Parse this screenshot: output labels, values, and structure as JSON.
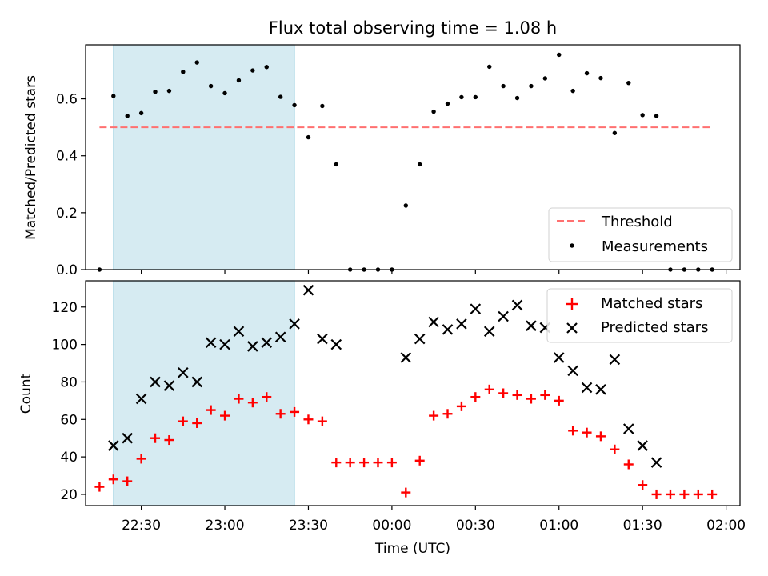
{
  "chart_data": [
    {
      "type": "scatter",
      "title": "Flux total observing time = 1.08 h",
      "ylabel": "Matched/Predicted stars",
      "xlim": [
        "22:10",
        "02:05"
      ],
      "ylim": [
        0,
        0.79
      ],
      "yticks": [
        "0.0",
        "0.2",
        "0.4",
        "0.6"
      ],
      "highlight_span": [
        "22:20",
        "23:25"
      ],
      "threshold": 0.5,
      "threshold_x": [
        "22:15",
        "01:55"
      ],
      "legend": {
        "location": "lower-right",
        "entries": [
          "Threshold",
          "Measurements"
        ]
      },
      "colors": {
        "threshold": "#ff7070",
        "measurements": "#000000",
        "span": "#add8e6"
      },
      "series": [
        {
          "name": "Measurements",
          "x": [
            "22:15",
            "22:20",
            "22:25",
            "22:30",
            "22:35",
            "22:40",
            "22:45",
            "22:50",
            "22:55",
            "23:00",
            "23:05",
            "23:10",
            "23:15",
            "23:20",
            "23:25",
            "23:30",
            "23:35",
            "23:40",
            "23:45",
            "23:50",
            "23:55",
            "00:00",
            "00:05",
            "00:10",
            "00:15",
            "00:20",
            "00:25",
            "00:30",
            "00:35",
            "00:40",
            "00:45",
            "00:50",
            "00:55",
            "01:00",
            "01:05",
            "01:10",
            "01:15",
            "01:20",
            "01:25",
            "01:30",
            "01:35",
            "01:40",
            "01:45",
            "01:50",
            "01:55"
          ],
          "y": [
            0.0,
            0.61,
            0.54,
            0.55,
            0.625,
            0.628,
            0.695,
            0.728,
            0.645,
            0.62,
            0.665,
            0.7,
            0.712,
            0.607,
            0.578,
            0.465,
            0.575,
            0.37,
            0.0,
            0.0,
            0.0,
            0.0,
            0.225,
            0.37,
            0.555,
            0.583,
            0.606,
            0.606,
            0.713,
            0.645,
            0.603,
            0.645,
            0.672,
            0.755,
            0.628,
            0.69,
            0.673,
            0.48,
            0.656,
            0.543,
            0.54,
            0.0,
            0.0,
            0.0,
            0.0
          ]
        }
      ]
    },
    {
      "type": "scatter",
      "title": "",
      "xlabel": "Time (UTC)",
      "ylabel": "Count",
      "xlim": [
        "22:10",
        "02:05"
      ],
      "ylim": [
        14,
        134
      ],
      "yticks": [
        "20",
        "40",
        "60",
        "80",
        "100",
        "120"
      ],
      "xticks": [
        "22:30",
        "23:00",
        "23:30",
        "00:00",
        "00:30",
        "01:00",
        "01:30",
        "02:00"
      ],
      "highlight_span": [
        "22:20",
        "23:25"
      ],
      "legend": {
        "location": "top-right",
        "entries": [
          "Matched stars",
          "Predicted stars"
        ]
      },
      "colors": {
        "matched": "#ff0000",
        "predicted": "#000000",
        "span": "#add8e6"
      },
      "series": [
        {
          "name": "Matched stars",
          "marker": "plus",
          "x": [
            "22:15",
            "22:20",
            "22:25",
            "22:30",
            "22:35",
            "22:40",
            "22:45",
            "22:50",
            "22:55",
            "23:00",
            "23:05",
            "23:10",
            "23:15",
            "23:20",
            "23:25",
            "23:30",
            "23:35",
            "23:40",
            "23:45",
            "23:50",
            "23:55",
            "00:00",
            "00:05",
            "00:10",
            "00:15",
            "00:20",
            "00:25",
            "00:30",
            "00:35",
            "00:40",
            "00:45",
            "00:50",
            "00:55",
            "01:00",
            "01:05",
            "01:10",
            "01:15",
            "01:20",
            "01:25",
            "01:30",
            "01:35",
            "01:40",
            "01:45",
            "01:50",
            "01:55"
          ],
          "y": [
            24,
            28,
            27,
            39,
            50,
            49,
            59,
            58,
            65,
            62,
            71,
            69,
            72,
            63,
            64,
            60,
            59,
            37,
            37,
            37,
            37,
            37,
            21,
            38,
            62,
            63,
            67,
            72,
            76,
            74,
            73,
            71,
            73,
            70,
            54,
            53,
            51,
            44,
            36,
            25,
            20,
            20,
            20,
            20,
            20
          ]
        },
        {
          "name": "Predicted stars",
          "marker": "x",
          "x": [
            "22:20",
            "22:25",
            "22:30",
            "22:35",
            "22:40",
            "22:45",
            "22:50",
            "22:55",
            "23:00",
            "23:05",
            "23:10",
            "23:15",
            "23:20",
            "23:25",
            "23:30",
            "23:35",
            "23:40",
            "00:05",
            "00:10",
            "00:15",
            "00:20",
            "00:25",
            "00:30",
            "00:35",
            "00:40",
            "00:45",
            "00:50",
            "00:55",
            "01:00",
            "01:05",
            "01:10",
            "01:15",
            "01:20",
            "01:25",
            "01:30",
            "01:35"
          ],
          "y": [
            46,
            50,
            71,
            80,
            78,
            85,
            80,
            101,
            100,
            107,
            99,
            101,
            104,
            111,
            129,
            103,
            100,
            93,
            103,
            112,
            108,
            111,
            119,
            107,
            115,
            121,
            110,
            109,
            93,
            86,
            77,
            76,
            92,
            55,
            46,
            37
          ]
        }
      ]
    }
  ]
}
